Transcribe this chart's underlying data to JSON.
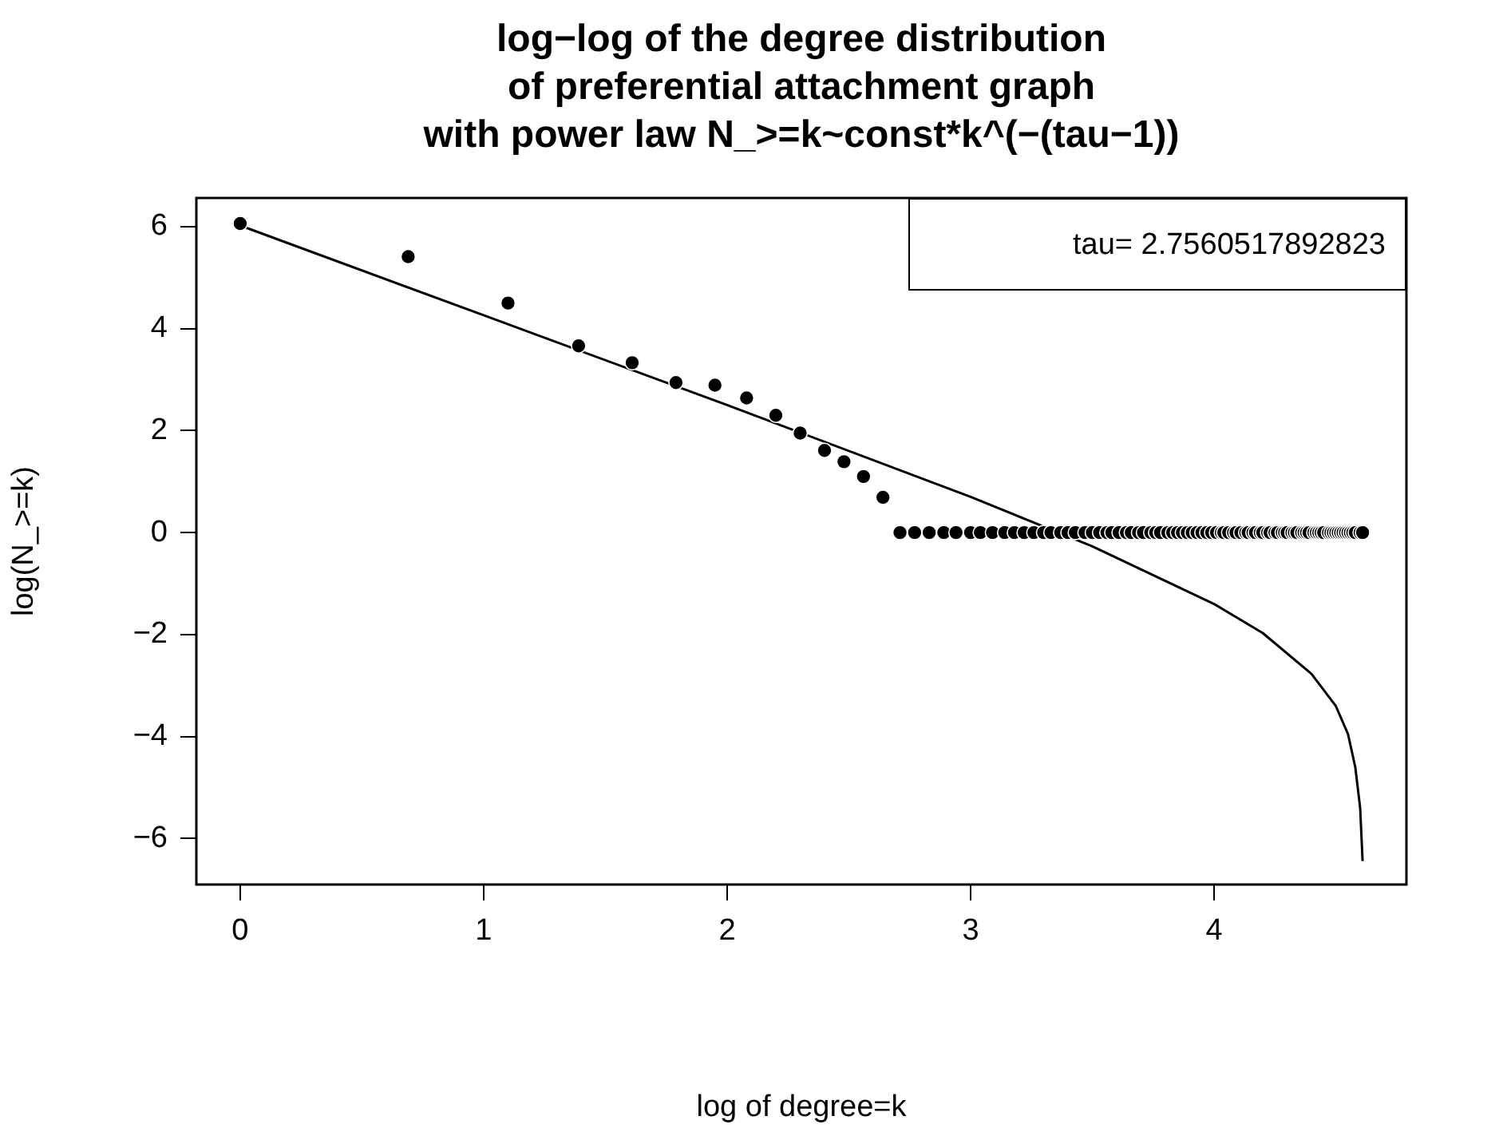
{
  "chart_data": {
    "type": "scatter",
    "title": "log−log of the degree distribution\nof preferential attachment graph\nwith power law N_>=k~const*k^(−(tau−1))",
    "xlabel": "log of degree=k",
    "ylabel": "log(N_>=k)",
    "annotations": [
      "tau= 2.7560517892823"
    ],
    "xlim": [
      -0.18,
      4.79
    ],
    "ylim": [
      -6.9,
      6.56
    ],
    "xticks": [
      0,
      1,
      2,
      3,
      4
    ],
    "yticks": [
      {
        "value": -6,
        "label": "−6"
      },
      {
        "value": -4,
        "label": "−4"
      },
      {
        "value": -2,
        "label": "−2"
      },
      0,
      2,
      4,
      6
    ],
    "series": [
      {
        "type": "scatter",
        "color": "#000000",
        "marker": "circle",
        "x": [
          0,
          0.69,
          1.1,
          1.39,
          1.61,
          1.79,
          1.95,
          2.08,
          2.2,
          2.3,
          2.4,
          2.48,
          2.56,
          2.64,
          2.71,
          2.77,
          2.83,
          2.89,
          2.94,
          3.0,
          3.04,
          3.09,
          3.14,
          3.18,
          3.22,
          3.26,
          3.3,
          3.33,
          3.37,
          3.4,
          3.43,
          3.47,
          3.5,
          3.53,
          3.56,
          3.58,
          3.61,
          3.64,
          3.66,
          3.69,
          3.71,
          3.74,
          3.76,
          3.78,
          3.81,
          3.83,
          3.85,
          3.87,
          3.89,
          3.91,
          3.93,
          3.95,
          3.97,
          3.99,
          4.01,
          4.03,
          4.04,
          4.06,
          4.08,
          4.09,
          4.11,
          4.13,
          4.14,
          4.16,
          4.17,
          4.19,
          4.2,
          4.22,
          4.23,
          4.25,
          4.26,
          4.28,
          4.29,
          4.3,
          4.32,
          4.33,
          4.34,
          4.36,
          4.37,
          4.38,
          4.39,
          4.41,
          4.42,
          4.43,
          4.44,
          4.45,
          4.47,
          4.48,
          4.49,
          4.5,
          4.51,
          4.52,
          4.53,
          4.54,
          4.55,
          4.56,
          4.57,
          4.58,
          4.6,
          4.61
        ],
        "values": [
          6.06,
          5.41,
          4.5,
          3.66,
          3.33,
          2.94,
          2.89,
          2.64,
          2.3,
          1.95,
          1.61,
          1.39,
          1.1,
          0.69,
          0,
          0,
          0,
          0,
          0,
          0,
          0,
          0,
          0,
          0,
          0,
          0,
          0,
          0,
          0,
          0,
          0,
          0,
          0,
          0,
          0,
          0,
          0,
          0,
          0,
          0,
          0,
          0,
          0,
          0,
          0,
          0,
          0,
          0,
          0,
          0,
          0,
          0,
          0,
          0,
          0,
          0,
          0,
          0,
          0,
          0,
          0,
          0,
          0,
          0,
          0,
          0,
          0,
          0,
          0,
          0,
          0,
          0,
          0,
          0,
          0,
          0,
          0,
          0,
          0,
          0,
          0,
          0,
          0,
          0,
          0,
          0,
          0,
          0,
          0,
          0,
          0,
          0,
          0,
          0,
          0,
          0,
          0,
          0,
          0,
          0
        ]
      },
      {
        "type": "line",
        "color": "#000000",
        "x": [
          0,
          1,
          2,
          3,
          3.5,
          4,
          4.2,
          4.4,
          4.5,
          4.55,
          4.58,
          4.6,
          4.61
        ],
        "values": [
          6.02,
          4.26,
          2.5,
          0.7,
          -0.27,
          -1.4,
          -1.97,
          -2.77,
          -3.4,
          -3.95,
          -4.6,
          -5.4,
          -6.44
        ]
      }
    ]
  }
}
